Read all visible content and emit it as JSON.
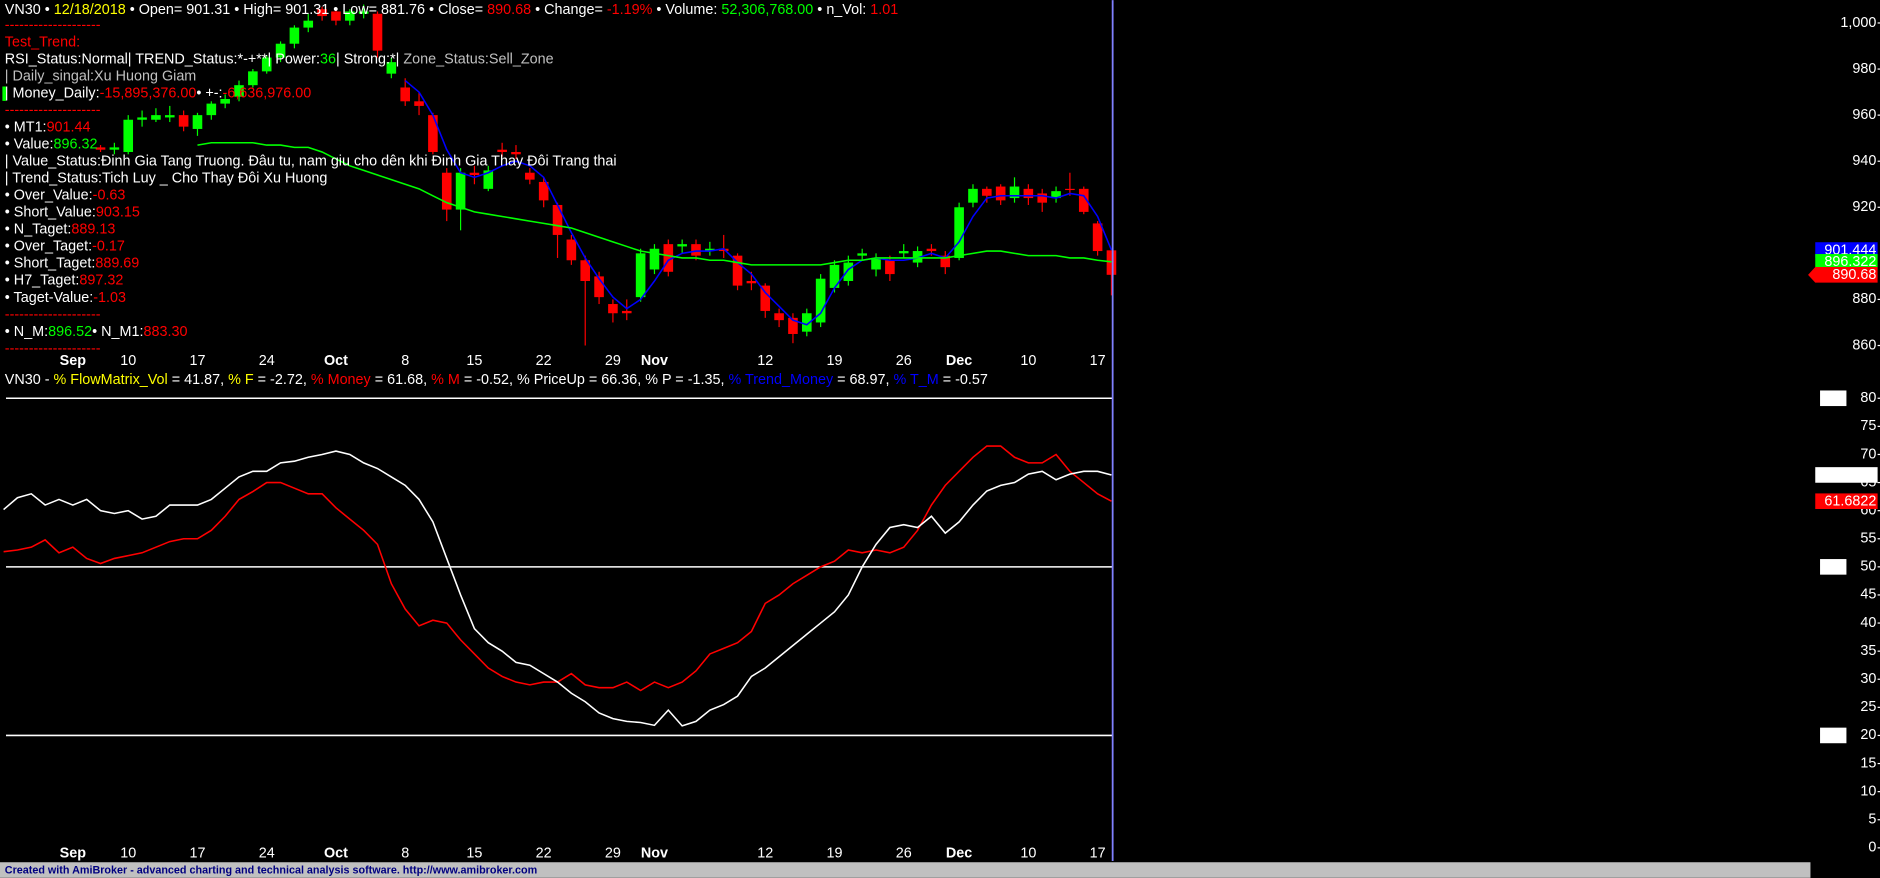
{
  "chart_data": [
    {
      "type": "candlestick",
      "title": [
        {
          "text": "VN30 • ",
          "color": "#ffffff"
        },
        {
          "text": "12/18/2018",
          "color": "#ffff00"
        },
        {
          "text": " • Open= 901.31 • High= 901.31 • Low= 881.76 • Close= ",
          "color": "#ffffff"
        },
        {
          "text": "890.68",
          "color": "#ff0000"
        },
        {
          "text": " • Change= ",
          "color": "#ffffff"
        },
        {
          "text": "-1.19%",
          "color": "#ff0000"
        },
        {
          "text": " • Volume: ",
          "color": "#ffffff"
        },
        {
          "text": "52,306,768.00",
          "color": "#00ff00"
        },
        {
          "text": " • n_Vol: ",
          "color": "#ffffff"
        },
        {
          "text": "1.01",
          "color": "#ff0000"
        }
      ],
      "annotations": [
        [
          {
            "text": "--------------------",
            "color": "#ff0000"
          }
        ],
        [
          {
            "text": "Test_Trend:",
            "color": "#ff0000"
          }
        ],
        [
          {
            "text": "RSI_Status:Normal| TREND_Status:*-+**| Power:",
            "color": "#ffffff"
          },
          {
            "text": "36",
            "color": "#00ff00"
          },
          {
            "text": "| Strong:*| ",
            "color": "#ffffff"
          },
          {
            "text": "Zone_Status:Sell_Zone",
            "color": "#c0c0c0"
          }
        ],
        [
          {
            "text": "| Daily_singal:Xu Huong Giam",
            "color": "#c0c0c0"
          }
        ],
        [
          {
            "text": "| Money_Daily:",
            "color": "#ffffff"
          },
          {
            "text": "-15,895,376.00",
            "color": "#ff0000"
          },
          {
            "text": "• +-:",
            "color": "#ffffff"
          },
          {
            "text": "-6,636,976.00",
            "color": "#ff0000"
          }
        ],
        [
          {
            "text": "--------------------",
            "color": "#ff0000"
          }
        ],
        [
          {
            "text": "• MT1:",
            "color": "#ffffff"
          },
          {
            "text": "901.44",
            "color": "#ff0000"
          }
        ],
        [
          {
            "text": "• Value:",
            "color": "#ffffff"
          },
          {
            "text": "896.32",
            "color": "#00ff00"
          }
        ],
        [
          {
            "text": "| Value_Status:Đinh Gia Tang Truong. Đâu tu, nam giu cho dên khi Đinh Gia Thay Đôi Trang thai",
            "color": "#ffffff"
          }
        ],
        [
          {
            "text": "| Trend_Status:Tich Luy _ Cho Thay Đôi Xu Huong",
            "color": "#ffffff"
          }
        ],
        [
          {
            "text": "• Over_Value:",
            "color": "#ffffff"
          },
          {
            "text": "-0.63",
            "color": "#ff0000"
          }
        ],
        [
          {
            "text": "• Short_Value:",
            "color": "#ffffff"
          },
          {
            "text": "903.15",
            "color": "#ff0000"
          }
        ],
        [
          {
            "text": "• N_Taget:",
            "color": "#ffffff"
          },
          {
            "text": "889.13",
            "color": "#ff0000"
          }
        ],
        [
          {
            "text": "• Over_Taget:",
            "color": "#ffffff"
          },
          {
            "text": "-0.17",
            "color": "#ff0000"
          }
        ],
        [
          {
            "text": "• Short_Taget:",
            "color": "#ffffff"
          },
          {
            "text": "889.69",
            "color": "#ff0000"
          }
        ],
        [
          {
            "text": "• H7_Taget:",
            "color": "#ffffff"
          },
          {
            "text": "897.32",
            "color": "#ff0000"
          }
        ],
        [
          {
            "text": "• Taget-Value:",
            "color": "#ffffff"
          },
          {
            "text": "-1.03",
            "color": "#ff0000"
          }
        ],
        [
          {
            "text": "--------------------",
            "color": "#ff0000"
          }
        ],
        [
          {
            "text": "• N_M:",
            "color": "#ffffff"
          },
          {
            "text": "896.52",
            "color": "#00ff00"
          },
          {
            "text": "• N_M1:",
            "color": "#ffffff"
          },
          {
            "text": "883.30",
            "color": "#ff0000"
          }
        ],
        [
          {
            "text": "--------------------",
            "color": "#ff0000"
          }
        ]
      ],
      "categories": [
        null,
        null,
        null,
        null,
        null,
        "Sep",
        null,
        null,
        null,
        "10",
        null,
        null,
        null,
        null,
        "17",
        null,
        null,
        null,
        null,
        "24",
        null,
        null,
        null,
        null,
        "Oct",
        null,
        null,
        null,
        null,
        "8",
        null,
        null,
        null,
        null,
        "15",
        null,
        null,
        null,
        null,
        "22",
        null,
        null,
        null,
        null,
        "29",
        null,
        null,
        "Nov",
        null,
        null,
        null,
        null,
        null,
        null,
        null,
        "12",
        null,
        null,
        null,
        null,
        "19",
        null,
        null,
        null,
        null,
        "26",
        null,
        null,
        null,
        "Dec",
        null,
        null,
        null,
        null,
        "10",
        null,
        null,
        null,
        null,
        "17",
        null
      ],
      "open": [
        null,
        null,
        null,
        null,
        null,
        null,
        null,
        946,
        945,
        944,
        958,
        958,
        959,
        960,
        954,
        960,
        965,
        968,
        973,
        979,
        985,
        991,
        998,
        1006,
        1005,
        1001,
        1004,
        1004,
        978,
        972,
        966,
        960,
        935,
        919,
        935,
        928,
        945,
        944,
        935,
        931,
        921,
        906,
        897,
        890,
        878,
        875,
        881,
        893,
        904,
        903,
        904,
        901,
        902,
        899,
        888,
        886,
        874,
        872,
        866,
        870,
        885,
        888,
        899,
        893,
        897,
        900,
        896,
        902,
        899,
        898,
        922,
        928,
        929,
        924,
        928,
        926,
        924,
        928,
        928,
        913,
        901.31
      ],
      "high": [
        null,
        null,
        null,
        null,
        null,
        null,
        null,
        947,
        948,
        960,
        962,
        963,
        964,
        962,
        961,
        966,
        969,
        975,
        980,
        986,
        992,
        999,
        1004,
        1007,
        1006,
        1006,
        1008,
        1005,
        985,
        976,
        970,
        961,
        937,
        937,
        938,
        938,
        948,
        947,
        937,
        933,
        922,
        908,
        899,
        892,
        880,
        880,
        902,
        904,
        906,
        906,
        906,
        905,
        908,
        900,
        892,
        887,
        876,
        874,
        876,
        891,
        897,
        899,
        902,
        900,
        899,
        904,
        903,
        904,
        901,
        922,
        930,
        929,
        930,
        933,
        930,
        928,
        929,
        935,
        929,
        914,
        901.31
      ],
      "low": [
        null,
        null,
        null,
        null,
        null,
        null,
        null,
        944,
        943,
        943,
        955,
        957,
        957,
        953,
        951,
        958,
        963,
        966,
        972,
        978,
        983,
        989,
        996,
        1001,
        999,
        999,
        1002,
        985,
        976,
        964,
        960,
        943,
        914,
        910,
        930,
        927,
        942,
        941,
        930,
        920,
        898,
        895,
        860,
        878,
        870,
        871,
        879,
        891,
        890,
        900,
        897,
        899,
        898,
        884,
        884,
        872,
        868,
        861,
        864,
        868,
        883,
        886,
        897,
        890,
        888,
        898,
        894,
        899,
        891,
        897,
        920,
        922,
        921,
        922,
        921,
        918,
        922,
        925,
        917,
        899,
        881.76
      ],
      "close": [
        null,
        null,
        null,
        null,
        null,
        null,
        null,
        945,
        946,
        958,
        959,
        960,
        960,
        955,
        960,
        965,
        967,
        973,
        979,
        985,
        991,
        998,
        1001,
        1003,
        1001,
        1005,
        1005,
        988,
        983,
        966,
        964,
        944,
        919,
        935,
        934,
        936,
        944,
        943,
        932,
        923,
        908,
        897,
        888,
        881,
        874,
        874,
        900,
        902,
        892,
        904,
        899,
        902,
        901,
        886,
        887,
        875,
        871,
        865,
        874,
        889,
        895,
        896,
        900,
        898,
        891,
        901,
        901,
        901,
        894,
        920,
        928,
        925,
        923,
        929,
        924,
        922,
        927,
        928,
        918,
        901,
        890.68
      ],
      "up_color": "#00ff00",
      "down_color": "#ff0000",
      "lines": [
        {
          "color": "#0000ff",
          "values": [
            null,
            null,
            null,
            null,
            null,
            null,
            null,
            null,
            null,
            null,
            null,
            null,
            null,
            null,
            null,
            null,
            null,
            null,
            null,
            null,
            null,
            null,
            null,
            null,
            null,
            null,
            null,
            null,
            null,
            975,
            970,
            960,
            945,
            935,
            933,
            935,
            938,
            940,
            938,
            933,
            921,
            909,
            898,
            889,
            881,
            876,
            880,
            888,
            897,
            900,
            901,
            901,
            902,
            896,
            891,
            883,
            877,
            871,
            869,
            874,
            885,
            893,
            897,
            898,
            897,
            897,
            898,
            900,
            898,
            905,
            916,
            924,
            925,
            925,
            925,
            925,
            924,
            926,
            925,
            916,
            901.444
          ]
        },
        {
          "color": "#00ff00",
          "values": [
            null,
            null,
            null,
            null,
            null,
            null,
            null,
            null,
            null,
            null,
            null,
            null,
            null,
            null,
            947,
            948,
            948,
            948,
            948,
            947,
            947,
            946,
            946,
            944,
            941,
            938,
            936,
            934,
            932,
            930,
            928,
            925,
            922,
            920,
            918,
            917,
            916,
            915,
            914,
            913,
            912,
            911,
            909,
            907,
            905,
            903,
            901,
            900,
            899,
            898,
            898,
            897,
            897,
            896,
            895,
            895,
            895,
            895,
            895,
            895,
            896,
            897,
            897,
            898,
            898,
            898,
            898,
            898,
            898,
            899,
            900,
            901,
            901,
            900,
            899,
            899,
            899,
            898,
            898,
            897,
            896.322
          ]
        }
      ],
      "ylim": [
        849.6,
        1009.9
      ],
      "yticks": [
        {
          "value": 1000,
          "label": "1,000"
        },
        980,
        960,
        940,
        920,
        880,
        860
      ]
    },
    {
      "type": "line",
      "title": [
        {
          "text": "VN30 - ",
          "color": "#ffffff"
        },
        {
          "text": "% FlowMatrix_Vol",
          "color": "#ffff00"
        },
        {
          "text": " = 41.87, ",
          "color": "#ffffff"
        },
        {
          "text": "% F",
          "color": "#ffff00"
        },
        {
          "text": " = -2.72, ",
          "color": "#ffffff"
        },
        {
          "text": "% Money",
          "color": "#ff0000"
        },
        {
          "text": " = 61.68, ",
          "color": "#ffffff"
        },
        {
          "text": "% M",
          "color": "#ff0000"
        },
        {
          "text": " = -0.52, % PriceUp = 66.36, % P = -1.35, ",
          "color": "#ffffff"
        },
        {
          "text": "% Trend_Money",
          "color": "#0000ff"
        },
        {
          "text": " = 68.97, ",
          "color": "#ffffff"
        },
        {
          "text": "% T_M",
          "color": "#0000ff"
        },
        {
          "text": " = -0.57",
          "color": "#ffffff"
        }
      ],
      "series": [
        {
          "color": "#ff0000",
          "values": [
            52.7,
            53,
            53.5,
            54.8,
            52.5,
            53.5,
            51.5,
            50.6,
            51.5,
            52,
            52.5,
            53.5,
            54.5,
            55,
            55,
            56.5,
            59,
            62,
            63.4,
            65,
            65,
            64,
            63,
            63,
            60.5,
            58.5,
            56.5,
            54,
            47,
            42.5,
            39.5,
            40.5,
            40,
            37,
            34.5,
            32,
            30.5,
            29.5,
            29,
            29.5,
            29.5,
            31,
            29,
            28.5,
            28.5,
            29.5,
            28,
            29.5,
            28.5,
            29.5,
            31.5,
            34.5,
            35.5,
            36.5,
            38.5,
            43.5,
            45,
            47,
            48.5,
            50,
            51,
            53,
            52.5,
            53,
            52.5,
            53.5,
            56.5,
            61,
            64.5,
            67,
            69.5,
            71.5,
            71.5,
            69.5,
            68.5,
            68.5,
            70,
            67,
            65,
            63,
            61.6822
          ]
        },
        {
          "color": "#ffffff",
          "values": [
            60.2,
            62.3,
            63,
            61,
            62,
            61,
            62,
            60,
            59.5,
            60,
            58.5,
            59,
            61,
            61,
            61,
            62,
            64,
            66,
            67,
            67,
            68.5,
            68.8,
            69.5,
            70,
            70.6,
            70,
            68.5,
            67.5,
            66,
            64.5,
            62,
            58,
            51.5,
            45,
            39,
            36.5,
            35,
            33,
            32.5,
            31,
            29.5,
            27.5,
            26,
            24,
            23,
            22.5,
            22.3,
            21.8,
            24.5,
            21.7,
            22.5,
            24.5,
            25.5,
            27,
            30.5,
            32,
            34,
            36,
            38,
            40,
            42,
            45,
            50,
            54,
            57,
            57.5,
            57,
            59,
            56,
            58,
            61,
            63.5,
            64.5,
            65,
            66.5,
            67,
            65.5,
            66.5,
            67,
            67,
            66.3551
          ]
        }
      ],
      "hlines": [
        80,
        50,
        20
      ],
      "ylim": [
        -2.35,
        84.7
      ],
      "yticks": [
        0,
        5,
        10,
        15,
        20,
        25,
        30,
        35,
        40,
        45,
        50,
        55,
        60,
        65,
        70,
        75,
        80
      ]
    }
  ],
  "footer": "Created with AmiBroker - advanced charting and technical analysis software. http://www.amibroker.com"
}
